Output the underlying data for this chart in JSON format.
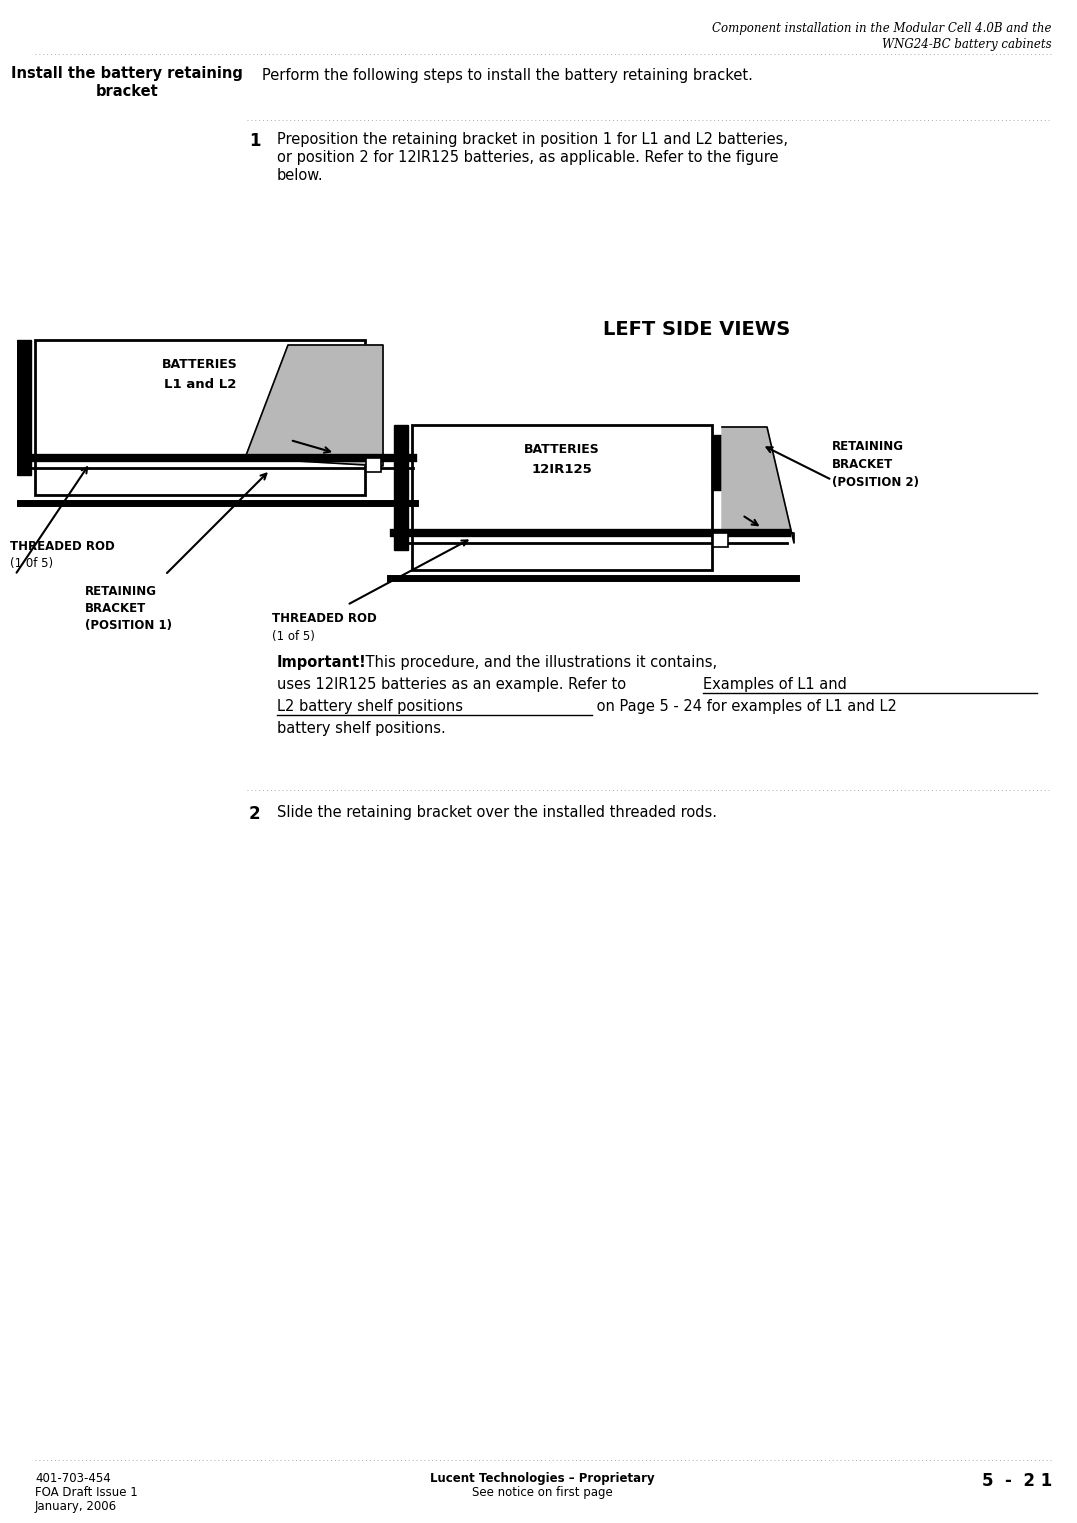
{
  "page_width": 10.5,
  "page_height": 15.0,
  "bg_color": "#ffffff",
  "header_title_line1": "Component installation in the Modular Cell 4.0B and the",
  "header_title_line2": "WNG24-BC battery cabinets",
  "section_title_line1": "Install the battery retaining",
  "section_title_line2": "bracket",
  "section_intro": "Perform the following steps to install the battery retaining bracket.",
  "step1_num": "1",
  "step1_text_line1": "Preposition the retaining bracket in position 1 for L1 and L2 batteries,",
  "step1_text_line2": "or position 2 for 12IR125 batteries, as applicable. Refer to the figure",
  "step1_text_line3": "below.",
  "diagram_title": "LEFT SIDE VIEWS",
  "l1l2_label": "BATTERIES",
  "l1l2_sublabel": "L1 and L2",
  "l1l2_threaded_rod_line1": "THREADED ROD",
  "l1l2_threaded_rod_line2": "(1 0f 5)",
  "l1l2_retaining_line1": "RETAINING",
  "l1l2_retaining_line2": "BRACKET",
  "l1l2_retaining_line3": "(POSITION 1)",
  "ir125_label": "BATTERIES",
  "ir125_sublabel": "12IR125",
  "ir125_threaded_rod_line1": "THREADED ROD",
  "ir125_threaded_rod_line2": "(1 of 5)",
  "ir125_retaining_line1": "RETAINING",
  "ir125_retaining_line2": "BRACKET",
  "ir125_retaining_line3": "(POSITION 2)",
  "important_bold": "Important!",
  "important_rest_line1": "    This procedure, and the illustrations it contains,",
  "important_line2a": "uses 12IR125 batteries as an example. Refer to ",
  "important_link_line1": "Examples of L1 and",
  "important_link_line2": "L2 battery shelf positions",
  "important_line3b": " on Page 5 - 24 for examples of L1 and L2",
  "important_line4": "battery shelf positions.",
  "step2_num": "2",
  "step2_text": "Slide the retaining bracket over the installed threaded rods.",
  "footer_left_line1": "401-703-454",
  "footer_left_line2": "FOA Draft Issue 1",
  "footer_left_line3": "January, 2006",
  "footer_center_line1": "Lucent Technologies – Proprietary",
  "footer_center_line2": "See notice on first page",
  "footer_right": "5  -  2 1",
  "dotted_color": "#aaaaaa",
  "gray_fill": "#b8b8b8",
  "black": "#000000",
  "white": "#ffffff"
}
